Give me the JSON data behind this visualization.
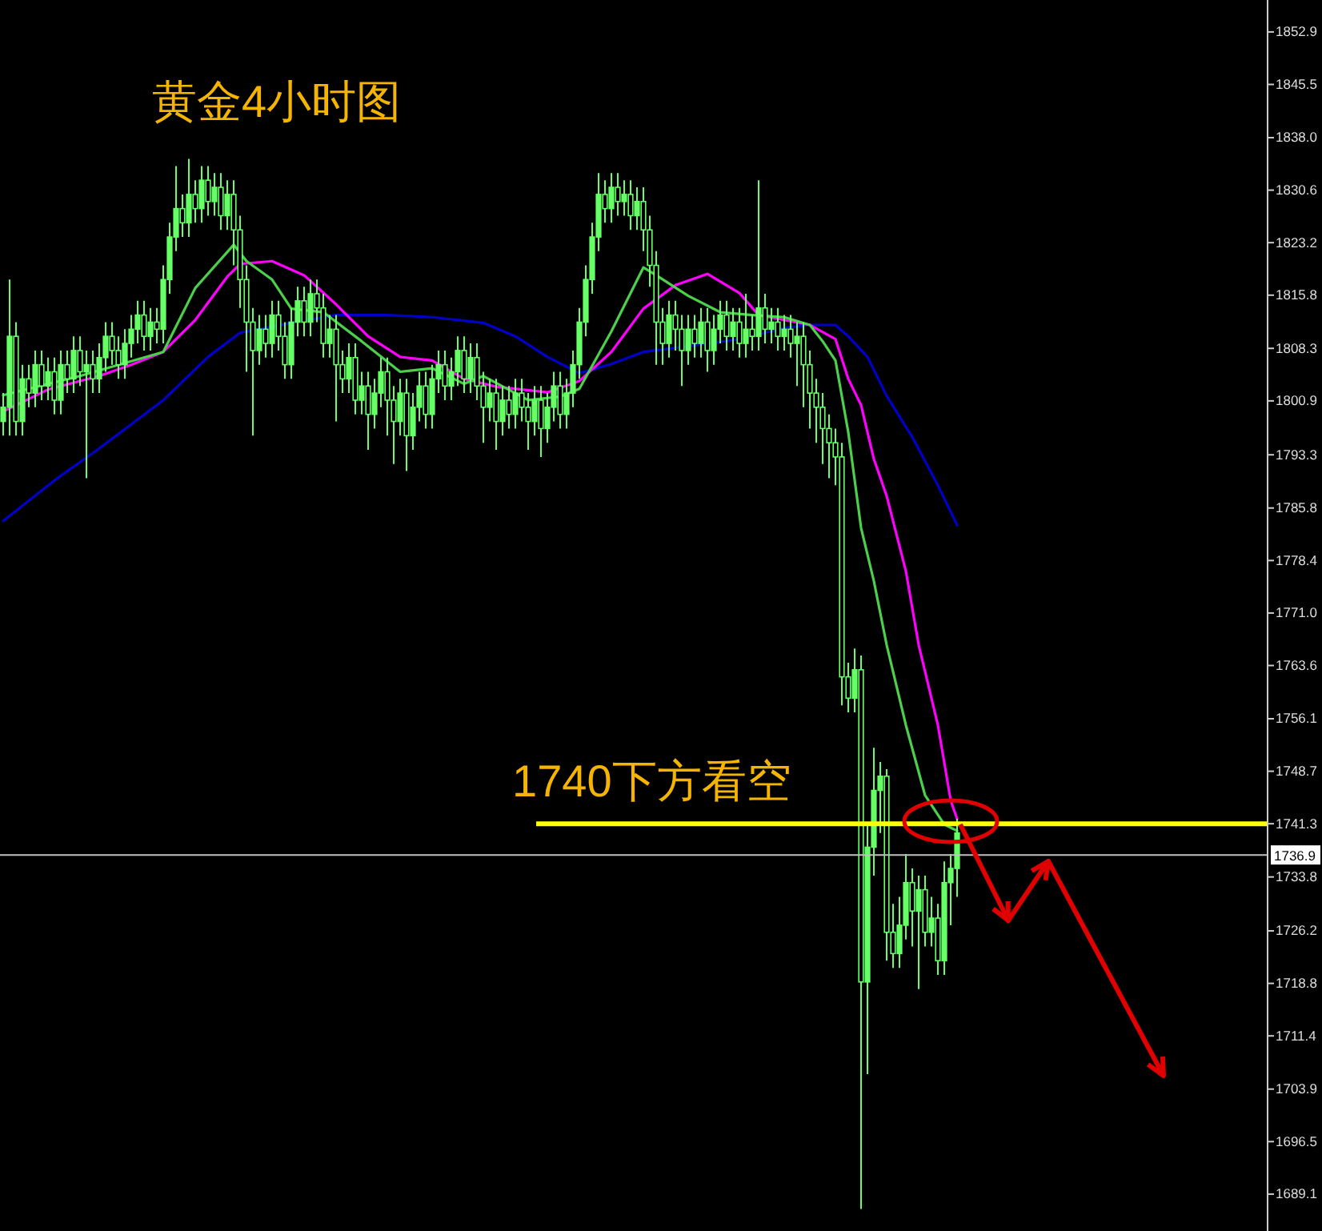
{
  "chart_data": {
    "type": "candlestick",
    "title": "黄金4小时图",
    "categories": [
      null,
      null,
      null,
      null,
      null,
      null,
      null,
      null,
      null,
      null,
      null,
      null,
      null,
      null,
      null,
      null,
      null,
      null,
      null,
      null,
      null,
      null,
      null,
      null,
      null,
      null,
      null,
      null,
      null,
      null,
      null,
      null,
      null,
      null,
      null,
      null,
      null,
      null,
      null,
      null,
      null,
      null,
      null,
      null,
      null,
      null,
      null,
      null,
      null,
      null,
      null,
      null,
      null,
      null,
      null,
      null,
      null,
      null,
      null,
      null,
      null,
      null,
      null,
      null,
      null,
      null,
      null,
      null,
      null,
      null,
      null,
      null,
      null,
      null,
      null,
      null,
      null,
      null,
      null,
      null,
      null,
      null,
      null,
      null,
      null,
      null,
      null,
      null,
      null,
      null,
      null,
      null,
      null,
      null,
      null,
      null,
      null,
      null,
      null,
      null,
      null,
      null,
      null,
      null,
      null,
      null,
      null,
      null,
      null,
      null,
      null,
      null,
      null,
      null,
      null,
      null,
      null,
      null,
      null,
      null,
      null,
      null,
      null,
      null,
      null,
      null,
      null,
      null,
      null,
      null,
      null,
      null,
      null,
      null,
      null,
      null,
      null,
      null,
      null,
      null,
      null,
      null,
      null,
      null,
      null,
      null,
      null,
      null,
      null,
      null,
      null,
      null,
      null,
      null,
      null,
      null,
      null,
      null,
      null,
      null,
      null,
      null,
      null,
      null,
      null,
      null,
      null,
      null,
      null,
      null,
      null,
      null,
      null,
      null,
      null,
      null,
      null,
      null,
      null,
      null,
      null,
      null,
      null,
      null,
      null,
      null,
      null,
      null,
      null,
      null,
      null,
      null,
      null,
      null,
      null,
      null,
      null,
      null
    ],
    "ylim": [
      1683.9,
      1857.4
    ],
    "tick_labels": "y",
    "yticks": [
      1852.9,
      1845.5,
      {
        "value": 1838,
        "label": "1838.0"
      },
      1830.6,
      1823.2,
      1815.8,
      1808.3,
      1800.9,
      1793.3,
      1785.8,
      1778.4,
      {
        "value": 1771,
        "label": "1771.0"
      },
      1763.6,
      1756.1,
      1748.7,
      1741.3,
      1733.8,
      1726.2,
      1718.8,
      1711.4,
      1703.9,
      1696.5,
      1689.1
    ],
    "ref_lines": [
      {
        "axis": "y",
        "value": 1741.3,
        "label": "1740下方看空",
        "color": "#ffff00"
      },
      {
        "axis": "y",
        "value": 1736.9,
        "label": "1736.9",
        "color": "#c0c0c0"
      }
    ],
    "series": [
      {
        "type": "candlestick",
        "color": "#66ff66",
        "ohlc": [
          [
            1798,
            1802,
            1796,
            1800
          ],
          [
            1800,
            1818,
            1796,
            1810
          ],
          [
            1810,
            1812,
            1796,
            1798
          ],
          [
            1798,
            1806,
            1796,
            1804
          ],
          [
            1804,
            1806,
            1800,
            1802
          ],
          [
            1802,
            1808,
            1800,
            1806
          ],
          [
            1806,
            1808,
            1801,
            1803
          ],
          [
            1803,
            1807,
            1801,
            1805
          ],
          [
            1805,
            1807,
            1799,
            1801
          ],
          [
            1801,
            1808,
            1799,
            1806
          ],
          [
            1806,
            1808,
            1802,
            1804
          ],
          [
            1804,
            1810,
            1802,
            1808
          ],
          [
            1808,
            1810,
            1803,
            1805
          ],
          [
            1805,
            1808,
            1790,
            1806
          ],
          [
            1806,
            1808,
            1802,
            1804
          ],
          [
            1804,
            1809,
            1802,
            1807
          ],
          [
            1807,
            1812,
            1805,
            1810
          ],
          [
            1810,
            1812,
            1806,
            1808
          ],
          [
            1808,
            1810,
            1804,
            1806
          ],
          [
            1806,
            1811,
            1804,
            1809
          ],
          [
            1809,
            1813,
            1807,
            1811
          ],
          [
            1811,
            1815,
            1809,
            1813
          ],
          [
            1813,
            1815,
            1808,
            1810
          ],
          [
            1810,
            1814,
            1808,
            1812
          ],
          [
            1812,
            1814,
            1809,
            1811
          ],
          [
            1811,
            1820,
            1809,
            1818
          ],
          [
            1818,
            1826,
            1816,
            1824
          ],
          [
            1824,
            1834,
            1822,
            1828
          ],
          [
            1828,
            1830,
            1824,
            1826
          ],
          [
            1826,
            1835,
            1824,
            1830
          ],
          [
            1830,
            1832,
            1826,
            1828
          ],
          [
            1828,
            1834,
            1826,
            1832
          ],
          [
            1832,
            1834,
            1827,
            1829
          ],
          [
            1829,
            1833,
            1827,
            1831
          ],
          [
            1831,
            1833,
            1825,
            1827
          ],
          [
            1827,
            1832,
            1825,
            1830
          ],
          [
            1830,
            1832,
            1820,
            1825
          ],
          [
            1825,
            1827,
            1814,
            1818
          ],
          [
            1818,
            1820,
            1805,
            1812
          ],
          [
            1812,
            1814,
            1796,
            1808
          ],
          [
            1808,
            1813,
            1806,
            1811
          ],
          [
            1811,
            1813,
            1807,
            1809
          ],
          [
            1809,
            1815,
            1807,
            1813
          ],
          [
            1813,
            1815,
            1808,
            1810
          ],
          [
            1810,
            1812,
            1804,
            1806
          ],
          [
            1806,
            1814,
            1804,
            1812
          ],
          [
            1812,
            1817,
            1810,
            1815
          ],
          [
            1815,
            1817,
            1810,
            1812
          ],
          [
            1812,
            1818,
            1810,
            1816
          ],
          [
            1816,
            1818,
            1812,
            1814
          ],
          [
            1814,
            1816,
            1807,
            1809
          ],
          [
            1809,
            1813,
            1807,
            1811
          ],
          [
            1811,
            1813,
            1798,
            1806
          ],
          [
            1806,
            1808,
            1802,
            1804
          ],
          [
            1804,
            1809,
            1802,
            1807
          ],
          [
            1807,
            1809,
            1799,
            1801
          ],
          [
            1801,
            1805,
            1799,
            1803
          ],
          [
            1803,
            1805,
            1794,
            1799
          ],
          [
            1799,
            1804,
            1797,
            1802
          ],
          [
            1802,
            1807,
            1800,
            1805
          ],
          [
            1805,
            1807,
            1796,
            1801
          ],
          [
            1801,
            1803,
            1792,
            1798
          ],
          [
            1798,
            1804,
            1796,
            1802
          ],
          [
            1802,
            1804,
            1791,
            1796
          ],
          [
            1796,
            1802,
            1794,
            1800
          ],
          [
            1800,
            1805,
            1798,
            1803
          ],
          [
            1803,
            1805,
            1797,
            1799
          ],
          [
            1799,
            1806,
            1797,
            1804
          ],
          [
            1804,
            1808,
            1802,
            1806
          ],
          [
            1806,
            1808,
            1801,
            1803
          ],
          [
            1803,
            1807,
            1801,
            1805
          ],
          [
            1805,
            1810,
            1803,
            1808
          ],
          [
            1808,
            1810,
            1802,
            1804
          ],
          [
            1804,
            1809,
            1802,
            1807
          ],
          [
            1807,
            1809,
            1801,
            1803
          ],
          [
            1803,
            1805,
            1795,
            1800
          ],
          [
            1800,
            1804,
            1798,
            1802
          ],
          [
            1802,
            1804,
            1794,
            1798
          ],
          [
            1798,
            1803,
            1796,
            1801
          ],
          [
            1801,
            1803,
            1797,
            1799
          ],
          [
            1799,
            1804,
            1797,
            1802
          ],
          [
            1802,
            1804,
            1798,
            1800
          ],
          [
            1800,
            1802,
            1794,
            1798
          ],
          [
            1798,
            1803,
            1796,
            1801
          ],
          [
            1801,
            1803,
            1793,
            1797
          ],
          [
            1797,
            1802,
            1795,
            1800
          ],
          [
            1800,
            1805,
            1798,
            1803
          ],
          [
            1803,
            1805,
            1797,
            1799
          ],
          [
            1799,
            1804,
            1797,
            1802
          ],
          [
            1802,
            1808,
            1800,
            1806
          ],
          [
            1806,
            1814,
            1804,
            1812
          ],
          [
            1812,
            1820,
            1810,
            1818
          ],
          [
            1818,
            1826,
            1816,
            1824
          ],
          [
            1824,
            1833,
            1822,
            1830
          ],
          [
            1830,
            1832,
            1826,
            1828
          ],
          [
            1828,
            1833,
            1826,
            1831
          ],
          [
            1831,
            1833,
            1827,
            1829
          ],
          [
            1829,
            1832,
            1827,
            1830
          ],
          [
            1830,
            1832,
            1825,
            1827
          ],
          [
            1827,
            1831,
            1825,
            1829
          ],
          [
            1829,
            1831,
            1822,
            1825
          ],
          [
            1825,
            1827,
            1817,
            1820
          ],
          [
            1820,
            1822,
            1806,
            1812
          ],
          [
            1812,
            1814,
            1806,
            1809
          ],
          [
            1809,
            1815,
            1807,
            1813
          ],
          [
            1813,
            1815,
            1808,
            1811
          ],
          [
            1811,
            1813,
            1803,
            1808
          ],
          [
            1808,
            1813,
            1806,
            1811
          ],
          [
            1811,
            1813,
            1807,
            1809
          ],
          [
            1809,
            1814,
            1807,
            1812
          ],
          [
            1812,
            1814,
            1805,
            1808
          ],
          [
            1808,
            1813,
            1806,
            1811
          ],
          [
            1811,
            1815,
            1809,
            1813
          ],
          [
            1813,
            1815,
            1808,
            1810
          ],
          [
            1810,
            1814,
            1808,
            1812
          ],
          [
            1812,
            1814,
            1807,
            1809
          ],
          [
            1809,
            1816,
            1807,
            1811
          ],
          [
            1811,
            1813,
            1808,
            1810
          ],
          [
            1810,
            1832,
            1808,
            1814
          ],
          [
            1814,
            1816,
            1809,
            1811
          ],
          [
            1811,
            1814,
            1809,
            1812
          ],
          [
            1812,
            1814,
            1808,
            1810
          ],
          [
            1810,
            1813,
            1808,
            1811
          ],
          [
            1811,
            1813,
            1807,
            1809
          ],
          [
            1809,
            1812,
            1803,
            1810
          ],
          [
            1810,
            1812,
            1800,
            1806
          ],
          [
            1806,
            1808,
            1797,
            1802
          ],
          [
            1802,
            1804,
            1795,
            1800
          ],
          [
            1800,
            1802,
            1792,
            1797
          ],
          [
            1797,
            1799,
            1790,
            1795
          ],
          [
            1795,
            1797,
            1789,
            1793
          ],
          [
            1793,
            1795,
            1758,
            1762
          ],
          [
            1762,
            1764,
            1757,
            1759
          ],
          [
            1759,
            1766,
            1757,
            1763
          ],
          [
            1763,
            1765,
            1687,
            1719
          ],
          [
            1719,
            1741,
            1706,
            1738
          ],
          [
            1738,
            1752,
            1734,
            1746
          ],
          [
            1746,
            1750,
            1740,
            1748
          ],
          [
            1748,
            1749,
            1722,
            1726
          ],
          [
            1726,
            1730,
            1721,
            1723
          ],
          [
            1723,
            1731,
            1721,
            1727
          ],
          [
            1727,
            1737,
            1725,
            1733
          ],
          [
            1733,
            1735,
            1724,
            1729
          ],
          [
            1729,
            1734,
            1718,
            1732
          ],
          [
            1732,
            1734,
            1724,
            1726
          ],
          [
            1726,
            1731,
            1724,
            1728
          ],
          [
            1728,
            1730,
            1720,
            1722
          ],
          [
            1722,
            1736,
            1720,
            1733
          ],
          [
            1733,
            1737,
            1727,
            1735
          ],
          [
            1735,
            1742,
            1731,
            1740
          ],
          null,
          null,
          null,
          null,
          null,
          null,
          null,
          null,
          null,
          null,
          null,
          null,
          null,
          null,
          null,
          null,
          null,
          null,
          null,
          null,
          null,
          null,
          null,
          null,
          null,
          null,
          null,
          null,
          null,
          null,
          null,
          null,
          null,
          null,
          null,
          null,
          null,
          null,
          null,
          null,
          null,
          null,
          null,
          null,
          null,
          null,
          null,
          null
        ]
      },
      {
        "type": "line",
        "color": "#0000c8",
        "values": [
          1784,
          null,
          null,
          null,
          null,
          null,
          null,
          null,
          1789.7,
          null,
          null,
          null,
          null,
          null,
          null,
          1794.2,
          null,
          null,
          null,
          null,
          null,
          null,
          null,
          null,
          null,
          1801,
          null,
          null,
          null,
          null,
          null,
          null,
          1807.1,
          null,
          null,
          null,
          null,
          1810.5,
          null,
          null,
          null,
          null,
          null,
          null,
          null,
          1811.9,
          null,
          null,
          null,
          null,
          null,
          null,
          1813,
          null,
          null,
          null,
          null,
          null,
          null,
          null,
          1813,
          null,
          null,
          null,
          null,
          null,
          null,
          1812.7,
          null,
          null,
          null,
          null,
          null,
          null,
          null,
          1811.9,
          null,
          null,
          null,
          null,
          1810,
          null,
          null,
          null,
          null,
          1807.1,
          null,
          null,
          null,
          null,
          1804.8,
          null,
          null,
          null,
          null,
          1806.1,
          null,
          null,
          null,
          null,
          1807.8,
          null,
          null,
          null,
          null,
          null,
          null,
          1808.6,
          null,
          null,
          null,
          null,
          null,
          null,
          null,
          1809.6,
          null,
          null,
          null,
          null,
          null,
          null,
          1811.2,
          null,
          null,
          null,
          1811.6,
          null,
          null,
          null,
          1811.6,
          null,
          1810,
          null,
          null,
          1807.1,
          null,
          null,
          1801.6,
          null,
          null,
          null,
          1795.8,
          null,
          null,
          null,
          1789,
          null,
          null,
          1783.4,
          null,
          null,
          null,
          null,
          null,
          null,
          null,
          null,
          null,
          null,
          null,
          null,
          null,
          null,
          null,
          null,
          null,
          null,
          null,
          null,
          null,
          null,
          null,
          null,
          null,
          null,
          null,
          null,
          null,
          null,
          null,
          null,
          null,
          null,
          null,
          null,
          null,
          null,
          null,
          null,
          null,
          null,
          null,
          null,
          null,
          null,
          null,
          null
        ]
      },
      {
        "type": "line",
        "color": "#ff00ff",
        "values": [
          1799.4,
          null,
          null,
          null,
          null,
          null,
          null,
          1802.5,
          null,
          null,
          null,
          null,
          null,
          null,
          null,
          1804.4,
          null,
          null,
          null,
          null,
          1806,
          null,
          null,
          null,
          null,
          1807.8,
          null,
          null,
          null,
          null,
          1812.3,
          null,
          null,
          null,
          null,
          1818.4,
          null,
          1820.2,
          null,
          null,
          null,
          null,
          1820.6,
          null,
          null,
          null,
          null,
          1818.6,
          null,
          null,
          null,
          null,
          1814.5,
          null,
          null,
          null,
          null,
          1810,
          null,
          null,
          null,
          null,
          1807.1,
          null,
          null,
          null,
          null,
          1806.6,
          null,
          null,
          null,
          null,
          1804,
          null,
          null,
          null,
          null,
          1802.9,
          null,
          null,
          null,
          null,
          null,
          null,
          null,
          1802.1,
          null,
          null,
          null,
          null,
          1803.7,
          null,
          null,
          null,
          null,
          1807.8,
          null,
          null,
          null,
          null,
          1813.9,
          null,
          null,
          null,
          null,
          1817.2,
          null,
          null,
          null,
          null,
          1818.8,
          null,
          null,
          null,
          null,
          1816.1,
          null,
          null,
          1813,
          null,
          null,
          null,
          1812.3,
          null,
          null,
          null,
          1811.6,
          null,
          null,
          null,
          1809.6,
          null,
          1804,
          null,
          1800.3,
          null,
          1792.7,
          null,
          1787.5,
          null,
          null,
          1776.9,
          null,
          1766.5,
          null,
          null,
          1755.2,
          null,
          1744.6,
          1742,
          null,
          null,
          null,
          null,
          null,
          null,
          null,
          null,
          null,
          null,
          null,
          null,
          null,
          null,
          null,
          null,
          null,
          null,
          null,
          null,
          null,
          null,
          null,
          null,
          null,
          null,
          null,
          null,
          null,
          null,
          null,
          null,
          null,
          null,
          null,
          null,
          null,
          null,
          null,
          null,
          null,
          null,
          null,
          null,
          null,
          null,
          null,
          null
        ]
      },
      {
        "type": "line",
        "color": "#4cd04c",
        "values": [
          1801.7,
          null,
          null,
          null,
          null,
          null,
          null,
          null,
          null,
          null,
          null,
          null,
          1804.4,
          null,
          null,
          null,
          null,
          null,
          null,
          null,
          null,
          null,
          null,
          null,
          null,
          1807.8,
          null,
          null,
          null,
          null,
          1816.8,
          null,
          null,
          null,
          null,
          null,
          1822.9,
          null,
          1820.6,
          null,
          null,
          null,
          1818,
          null,
          null,
          1813.9,
          null,
          null,
          null,
          null,
          1813.4,
          null,
          null,
          null,
          null,
          null,
          1809.3,
          null,
          null,
          null,
          null,
          null,
          1805,
          null,
          null,
          null,
          null,
          1805.5,
          null,
          null,
          null,
          null,
          1803.3,
          null,
          null,
          1804.4,
          null,
          null,
          null,
          null,
          null,
          null,
          1801,
          null,
          null,
          null,
          null,
          1801.5,
          null,
          null,
          1802.6,
          null,
          null,
          null,
          null,
          1810.7,
          null,
          null,
          null,
          null,
          1819.7,
          null,
          1818.6,
          null,
          null,
          null,
          null,
          1815.7,
          null,
          null,
          null,
          null,
          1813.4,
          null,
          null,
          null,
          null,
          1813,
          null,
          null,
          null,
          null,
          1812.7,
          null,
          null,
          null,
          1811.6,
          null,
          1809.3,
          null,
          1806.6,
          null,
          1796.5,
          null,
          1783,
          null,
          1775.5,
          null,
          1766.5,
          null,
          null,
          1755.2,
          null,
          null,
          1745.3,
          null,
          null,
          1741.2,
          null,
          1740.3,
          null,
          null,
          null,
          null,
          null,
          null,
          null,
          null,
          null,
          null,
          null,
          null,
          null,
          null,
          null,
          null,
          null,
          null,
          null,
          null,
          null,
          null,
          null,
          null,
          null,
          null,
          null,
          null,
          null,
          null,
          null,
          null,
          null,
          null,
          null,
          null,
          null,
          null,
          null,
          null,
          null,
          null,
          null,
          null,
          null,
          null,
          null,
          null
        ]
      }
    ]
  }
}
